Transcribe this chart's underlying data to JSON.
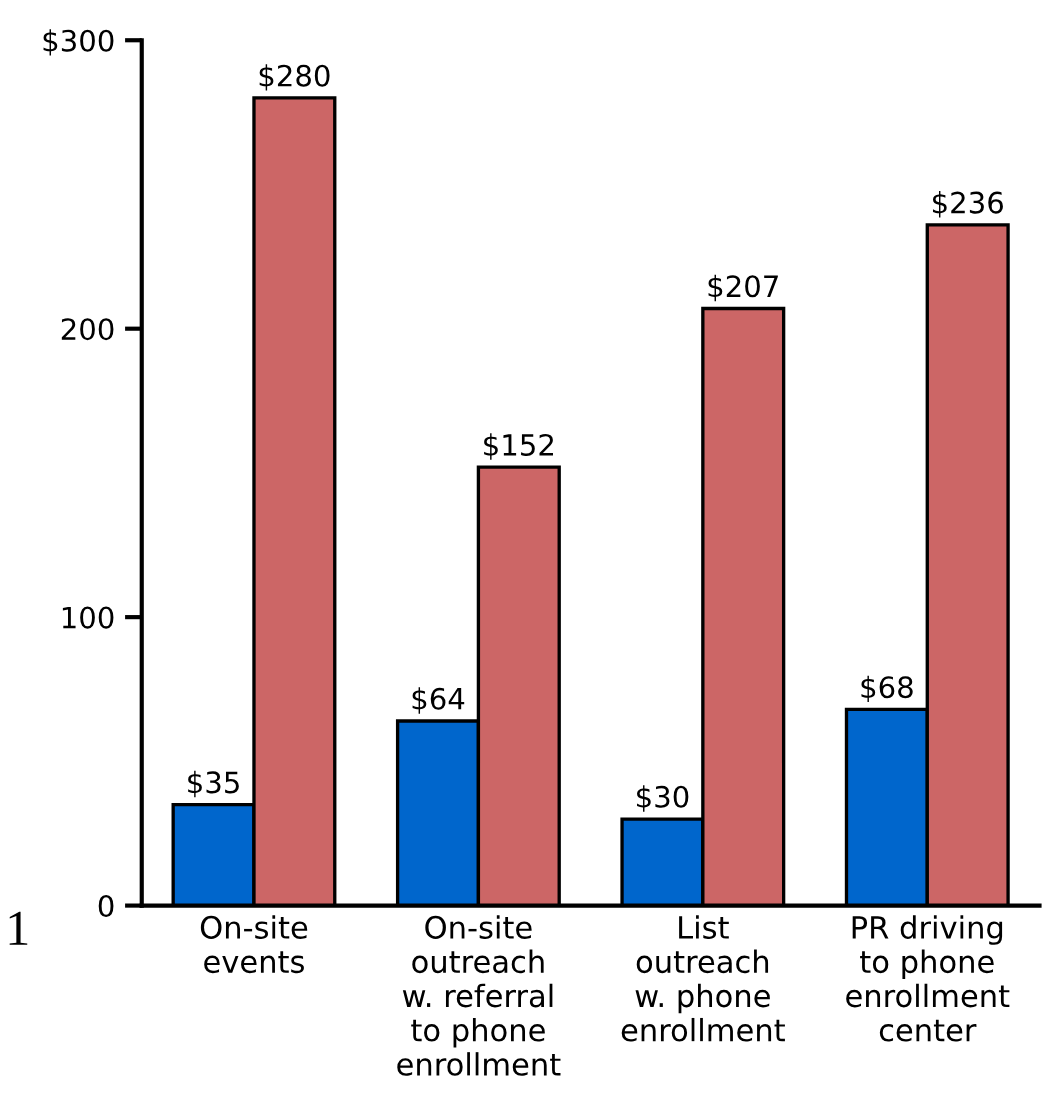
{
  "chart_data": {
    "type": "bar",
    "categories": [
      "On-site\nevents",
      "On-site\noutreach\nw. referral\nto phone\nenrollment",
      "List\noutreach\nw. phone\nenrollment",
      "PR driving\nto phone\nenrollment\ncenter"
    ],
    "series": [
      {
        "color": "#0066cc",
        "values": [
          35,
          64,
          30,
          68
        ],
        "value_labels": [
          "$35",
          "$64",
          "$30",
          "$68"
        ]
      },
      {
        "color": "#cc6666",
        "values": [
          280,
          152,
          207,
          236
        ],
        "value_labels": [
          "$280",
          "$152",
          "$207",
          "$236"
        ]
      }
    ],
    "ylim": [
      0,
      300
    ],
    "yticks": [
      0,
      100,
      200,
      {
        "value": 300,
        "label": "$300"
      }
    ],
    "grid": false,
    "legend": false,
    "annotations": [
      "1"
    ]
  }
}
